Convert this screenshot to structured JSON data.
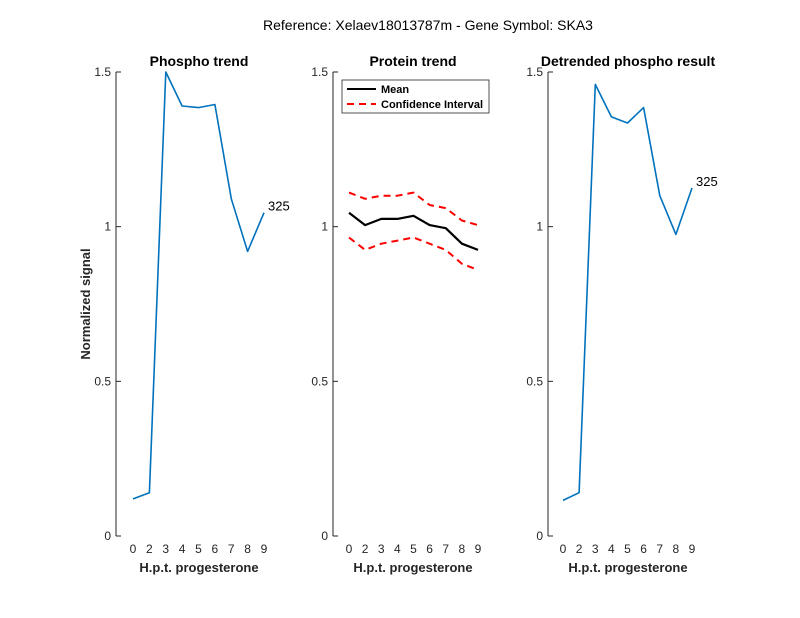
{
  "suptitle": "Reference:  Xelaev18013787m - Gene Symbol:  SKA3",
  "colors": {
    "phospho": "#0072BD",
    "mean": "#000000",
    "ci": "#FF0000",
    "axis": "#262626"
  },
  "chart_data": [
    {
      "type": "line",
      "title": "Phospho trend",
      "xlabel": "H.p.t. progesterone",
      "ylabel": "Normalized signal",
      "categories": [
        "0",
        "2",
        "3",
        "4",
        "5",
        "6",
        "7",
        "8",
        "9"
      ],
      "ylim": [
        0,
        1.5
      ],
      "yticks": [
        "0",
        "0.5",
        "1",
        "1.5"
      ],
      "series": [
        {
          "values": [
            0.12,
            0.14,
            1.5,
            1.39,
            1.385,
            1.395,
            1.09,
            0.92,
            1.045
          ]
        }
      ],
      "annotation": {
        "text": "325",
        "index": 8
      }
    },
    {
      "type": "line",
      "title": "Protein trend",
      "xlabel": "H.p.t. progesterone",
      "ylabel": "",
      "categories": [
        "0",
        "2",
        "3",
        "4",
        "5",
        "6",
        "7",
        "8",
        "9"
      ],
      "ylim": [
        0,
        1.5
      ],
      "yticks": [
        "0",
        "0.5",
        "1",
        "1.5"
      ],
      "legend": {
        "placement": "top-left"
      },
      "series": [
        {
          "name": "Mean",
          "style": "solid",
          "values": [
            1.045,
            1.005,
            1.025,
            1.025,
            1.035,
            1.005,
            0.995,
            0.945,
            0.925
          ]
        },
        {
          "name": "Confidence Interval",
          "style": "dashed",
          "values": [
            1.11,
            1.09,
            1.1,
            1.1,
            1.11,
            1.07,
            1.06,
            1.02,
            1.005
          ]
        },
        {
          "style": "dashed",
          "values": [
            0.965,
            0.925,
            0.945,
            0.955,
            0.965,
            0.945,
            0.925,
            0.88,
            0.86
          ]
        }
      ]
    },
    {
      "type": "line",
      "title": "Detrended phospho result",
      "xlabel": "H.p.t. progesterone",
      "ylabel": "",
      "categories": [
        "0",
        "2",
        "3",
        "4",
        "5",
        "6",
        "7",
        "8",
        "9"
      ],
      "ylim": [
        0,
        1.5
      ],
      "yticks": [
        "0",
        "0.5",
        "1",
        "1.5"
      ],
      "series": [
        {
          "values": [
            0.115,
            0.14,
            1.46,
            1.355,
            1.335,
            1.385,
            1.1,
            0.975,
            1.125
          ]
        }
      ],
      "annotation": {
        "text": "325",
        "index": 8
      }
    }
  ]
}
